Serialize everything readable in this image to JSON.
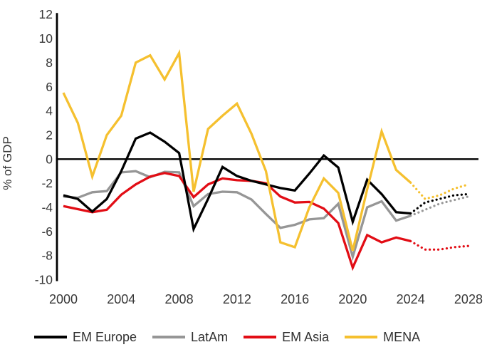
{
  "chart_data": {
    "type": "line",
    "title": "",
    "ylabel": "% of GDP",
    "ylim": [
      -10,
      12
    ],
    "ytick_step": 2,
    "x_range": [
      2000,
      2028
    ],
    "x_tick_years": [
      2000,
      2004,
      2008,
      2012,
      2016,
      2020,
      2024,
      2028
    ],
    "grid": false,
    "legend_position": "bottom",
    "forecast_start_year": 2024,
    "forecast_style": "dotted",
    "axis_color": "#000000",
    "tick_label_color": "#383838",
    "series": [
      {
        "name": "EM Europe",
        "color": "#000000",
        "actual": [
          -3.0,
          -3.3,
          -4.35,
          -3.3,
          -1.0,
          1.7,
          2.2,
          1.45,
          0.5,
          -5.8,
          -3.3,
          -0.65,
          -1.4,
          -1.8,
          -2.1,
          -2.4,
          -2.6,
          -1.2,
          0.3,
          -0.7,
          -5.2,
          -1.7,
          -2.9,
          -4.4,
          -4.5
        ],
        "forecast": [
          -4.5,
          -3.6,
          -3.3,
          -3.0,
          -2.9
        ]
      },
      {
        "name": "LatAm",
        "color": "#969696",
        "actual": [
          -3.1,
          -3.2,
          -2.75,
          -2.65,
          -1.1,
          -1.0,
          -1.5,
          -1.05,
          -1.1,
          -3.9,
          -2.9,
          -2.7,
          -2.75,
          -3.35,
          -4.55,
          -5.7,
          -5.45,
          -5.0,
          -4.9,
          -3.7,
          -8.1,
          -4.0,
          -3.5,
          -5.1,
          -4.7
        ],
        "forecast": [
          -4.7,
          -4.2,
          -3.7,
          -3.4,
          -3.1
        ]
      },
      {
        "name": "EM Asia",
        "color": "#e20d15",
        "actual": [
          -3.9,
          -4.15,
          -4.4,
          -4.2,
          -2.95,
          -2.1,
          -1.45,
          -1.15,
          -1.4,
          -3.15,
          -2.1,
          -1.6,
          -1.75,
          -1.8,
          -2.0,
          -3.1,
          -3.6,
          -3.55,
          -4.1,
          -5.3,
          -9.0,
          -6.3,
          -6.9,
          -6.5,
          -6.8
        ],
        "forecast": [
          -6.8,
          -7.5,
          -7.5,
          -7.3,
          -7.2
        ]
      },
      {
        "name": "MENA",
        "color": "#f5c02f",
        "actual": [
          5.5,
          3.0,
          -1.45,
          2.0,
          3.6,
          8.0,
          8.6,
          6.6,
          8.8,
          -2.7,
          2.5,
          3.6,
          4.6,
          2.1,
          -1.0,
          -6.9,
          -7.3,
          -4.0,
          -1.6,
          -2.8,
          -7.6,
          -2.5,
          2.3,
          -0.9,
          -1.95
        ],
        "forecast": [
          -1.95,
          -3.3,
          -3.0,
          -2.45,
          -2.1
        ]
      }
    ]
  }
}
